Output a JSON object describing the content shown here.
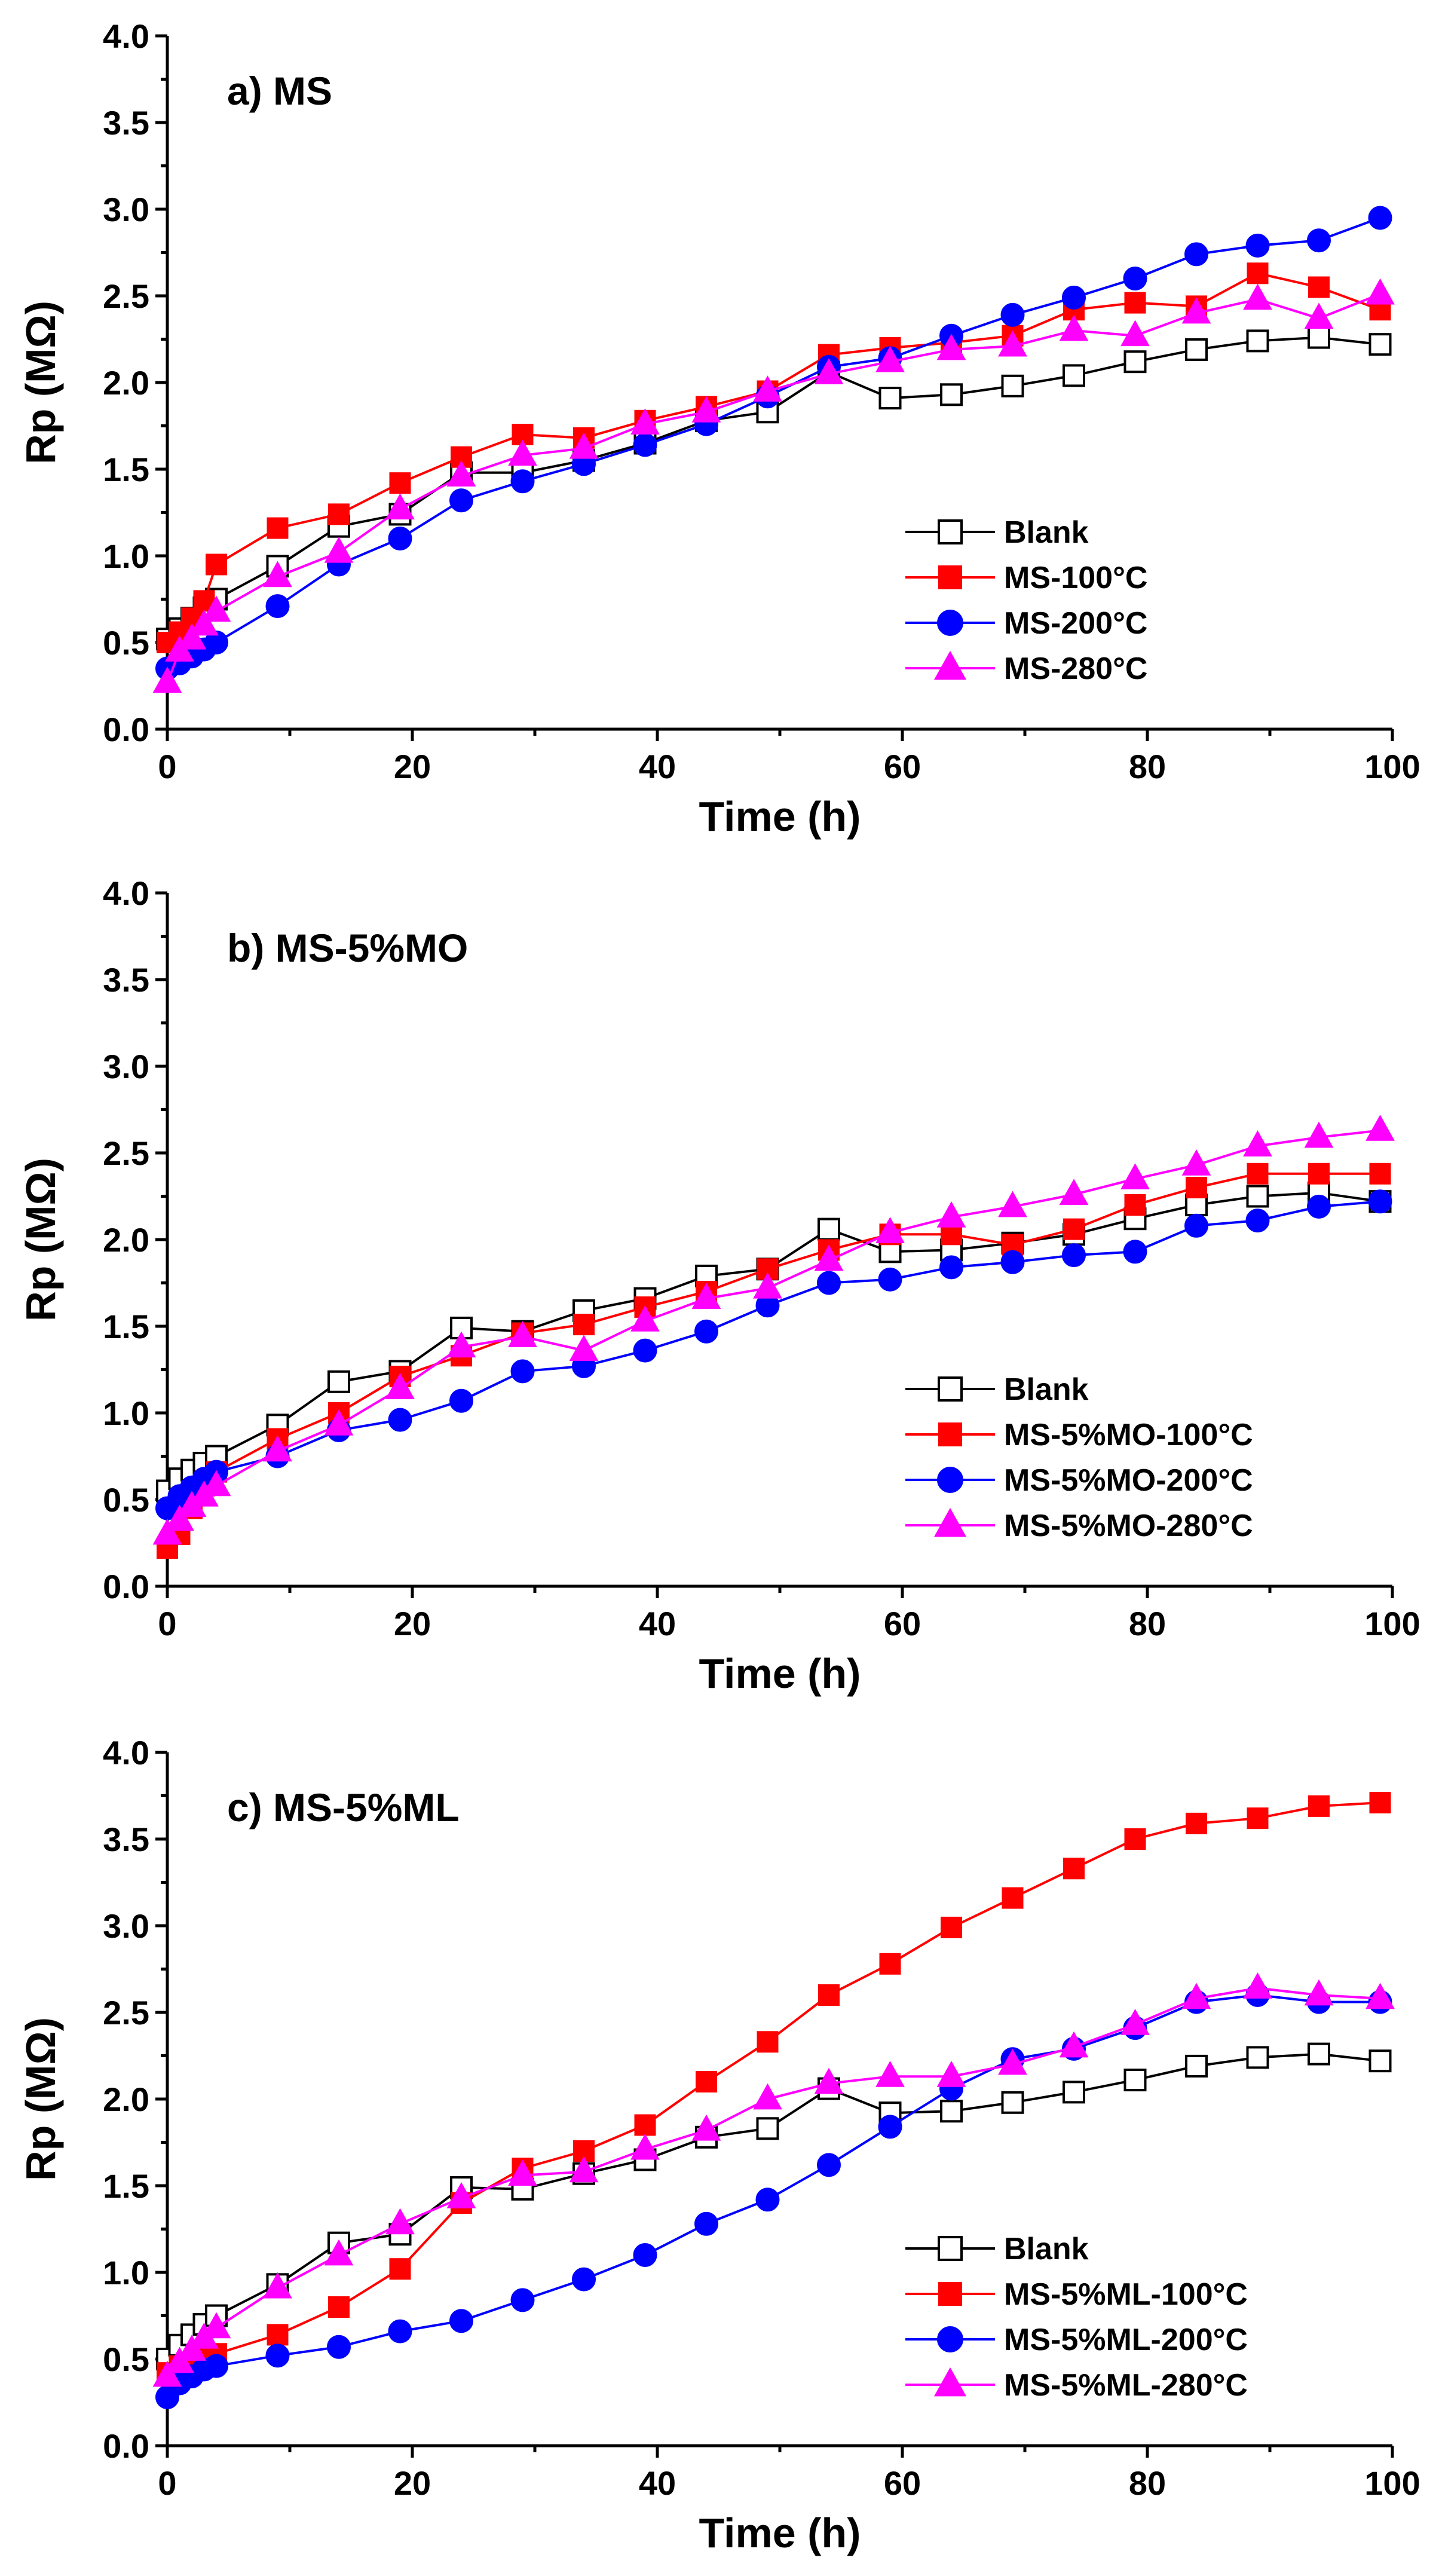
{
  "chart_data": [
    {
      "type": "line",
      "title": "a) MS",
      "xlabel": "Time (h)",
      "ylabel": "Rp (MΩ)",
      "xlim": [
        0,
        100
      ],
      "ylim": [
        0,
        4.0
      ],
      "xticks": [
        "0",
        "20",
        "40",
        "60",
        "80",
        "100"
      ],
      "yticks": [
        "0.0",
        "0.5",
        "1.0",
        "1.5",
        "2.0",
        "2.5",
        "3.0",
        "3.5",
        "4.0"
      ],
      "grid": false,
      "legend_position": "lower-right",
      "series": [
        {
          "name": "Blank",
          "color": "#000000",
          "marker": "open-square",
          "x": [
            0,
            1,
            2,
            3,
            4,
            9,
            14,
            19,
            24,
            29,
            34,
            39,
            44,
            49,
            54,
            59,
            64,
            69,
            74,
            79,
            84,
            89,
            94,
            99
          ],
          "y": [
            0.52,
            0.58,
            0.64,
            0.7,
            0.75,
            0.94,
            1.17,
            1.24,
            1.48,
            1.48,
            1.55,
            1.65,
            1.78,
            1.83,
            2.06,
            1.91,
            1.93,
            1.98,
            2.04,
            2.12,
            2.19,
            2.24,
            2.26,
            2.22
          ]
        },
        {
          "name": "MS-100°C",
          "color": "#ff0000",
          "marker": "square",
          "x": [
            0,
            1,
            2,
            3,
            4,
            9,
            14,
            19,
            24,
            29,
            34,
            39,
            44,
            49,
            54,
            59,
            64,
            69,
            74,
            79,
            84,
            89,
            94,
            99
          ],
          "y": [
            0.5,
            0.56,
            0.64,
            0.74,
            0.95,
            1.16,
            1.24,
            1.42,
            1.57,
            1.7,
            1.68,
            1.78,
            1.86,
            1.95,
            2.16,
            2.2,
            2.23,
            2.27,
            2.42,
            2.46,
            2.44,
            2.63,
            2.55,
            2.42
          ]
        },
        {
          "name": "MS-200°C",
          "color": "#0000ff",
          "marker": "circle",
          "x": [
            0,
            1,
            2,
            3,
            4,
            9,
            14,
            19,
            24,
            29,
            34,
            39,
            44,
            49,
            54,
            59,
            64,
            69,
            74,
            79,
            84,
            89,
            94,
            99
          ],
          "y": [
            0.35,
            0.38,
            0.42,
            0.46,
            0.5,
            0.71,
            0.95,
            1.1,
            1.32,
            1.43,
            1.53,
            1.64,
            1.76,
            1.92,
            2.09,
            2.14,
            2.27,
            2.39,
            2.49,
            2.6,
            2.74,
            2.79,
            2.82,
            2.95
          ]
        },
        {
          "name": "MS-280°C",
          "color": "#ff00ff",
          "marker": "triangle",
          "x": [
            0,
            1,
            2,
            3,
            4,
            9,
            14,
            19,
            24,
            29,
            34,
            39,
            44,
            49,
            54,
            59,
            64,
            69,
            74,
            79,
            84,
            89,
            94,
            99
          ],
          "y": [
            0.27,
            0.45,
            0.52,
            0.6,
            0.68,
            0.88,
            1.02,
            1.27,
            1.46,
            1.58,
            1.62,
            1.76,
            1.83,
            1.95,
            2.05,
            2.12,
            2.19,
            2.21,
            2.3,
            2.27,
            2.4,
            2.48,
            2.37,
            2.51
          ]
        }
      ]
    },
    {
      "type": "line",
      "title": "b) MS-5%MO",
      "xlabel": "Time (h)",
      "ylabel": "Rp (MΩ)",
      "xlim": [
        0,
        100
      ],
      "ylim": [
        0,
        4.0
      ],
      "xticks": [
        "0",
        "20",
        "40",
        "60",
        "80",
        "100"
      ],
      "yticks": [
        "0.0",
        "0.5",
        "1.0",
        "1.5",
        "2.0",
        "2.5",
        "3.0",
        "3.5",
        "4.0"
      ],
      "grid": false,
      "legend_position": "lower-right",
      "series": [
        {
          "name": "Blank",
          "color": "#000000",
          "marker": "open-square",
          "x": [
            0,
            1,
            2,
            3,
            4,
            9,
            14,
            19,
            24,
            29,
            34,
            39,
            44,
            49,
            54,
            59,
            64,
            69,
            74,
            79,
            84,
            89,
            94,
            99
          ],
          "y": [
            0.55,
            0.62,
            0.67,
            0.71,
            0.75,
            0.93,
            1.18,
            1.24,
            1.49,
            1.47,
            1.59,
            1.66,
            1.79,
            1.83,
            2.06,
            1.93,
            1.94,
            1.98,
            2.03,
            2.12,
            2.2,
            2.25,
            2.27,
            2.22
          ]
        },
        {
          "name": "MS-5%MO-100°C",
          "color": "#ff0000",
          "marker": "square",
          "x": [
            0,
            1,
            2,
            3,
            4,
            9,
            14,
            19,
            24,
            29,
            34,
            39,
            44,
            49,
            54,
            59,
            64,
            69,
            74,
            79,
            84,
            89,
            94,
            99
          ],
          "y": [
            0.22,
            0.3,
            0.45,
            0.58,
            0.66,
            0.85,
            1.0,
            1.21,
            1.33,
            1.46,
            1.51,
            1.61,
            1.7,
            1.83,
            1.94,
            2.03,
            2.03,
            1.97,
            2.06,
            2.2,
            2.3,
            2.38,
            2.38,
            2.38
          ]
        },
        {
          "name": "MS-5%MO-200°C",
          "color": "#0000ff",
          "marker": "circle",
          "x": [
            0,
            1,
            2,
            3,
            4,
            9,
            14,
            19,
            24,
            29,
            34,
            39,
            44,
            49,
            54,
            59,
            64,
            69,
            74,
            79,
            84,
            89,
            94,
            99
          ],
          "y": [
            0.45,
            0.52,
            0.57,
            0.62,
            0.66,
            0.75,
            0.9,
            0.96,
            1.07,
            1.24,
            1.27,
            1.36,
            1.47,
            1.62,
            1.75,
            1.77,
            1.84,
            1.87,
            1.91,
            1.93,
            2.08,
            2.11,
            2.19,
            2.22
          ]
        },
        {
          "name": "MS-5%MO-280°C",
          "color": "#ff00ff",
          "marker": "triangle",
          "x": [
            0,
            1,
            2,
            3,
            4,
            9,
            14,
            19,
            24,
            29,
            34,
            39,
            44,
            49,
            54,
            59,
            64,
            69,
            74,
            79,
            84,
            89,
            94,
            99
          ],
          "y": [
            0.3,
            0.38,
            0.46,
            0.52,
            0.58,
            0.78,
            0.93,
            1.14,
            1.38,
            1.44,
            1.36,
            1.53,
            1.66,
            1.72,
            1.88,
            2.04,
            2.13,
            2.19,
            2.26,
            2.35,
            2.43,
            2.54,
            2.59,
            2.63
          ]
        }
      ]
    },
    {
      "type": "line",
      "title": "c) MS-5%ML",
      "xlabel": "Time (h)",
      "ylabel": "Rp (MΩ)",
      "xlim": [
        0,
        100
      ],
      "ylim": [
        0,
        4.0
      ],
      "xticks": [
        "0",
        "20",
        "40",
        "60",
        "80",
        "100"
      ],
      "yticks": [
        "0.0",
        "0.5",
        "1.0",
        "1.5",
        "2.0",
        "2.5",
        "3.0",
        "3.5",
        "4.0"
      ],
      "grid": false,
      "legend_position": "lower-right",
      "series": [
        {
          "name": "Blank",
          "color": "#000000",
          "marker": "open-square",
          "x": [
            0,
            1,
            2,
            3,
            4,
            9,
            14,
            19,
            24,
            29,
            34,
            39,
            44,
            49,
            54,
            59,
            64,
            69,
            74,
            79,
            84,
            89,
            94,
            99
          ],
          "y": [
            0.5,
            0.58,
            0.64,
            0.7,
            0.75,
            0.93,
            1.17,
            1.22,
            1.49,
            1.48,
            1.57,
            1.65,
            1.78,
            1.83,
            2.06,
            1.92,
            1.93,
            1.98,
            2.04,
            2.11,
            2.19,
            2.24,
            2.26,
            2.22
          ]
        },
        {
          "name": "MS-5%ML-100°C",
          "color": "#ff0000",
          "marker": "square",
          "x": [
            0,
            1,
            2,
            3,
            4,
            9,
            14,
            19,
            24,
            29,
            34,
            39,
            44,
            49,
            54,
            59,
            64,
            69,
            74,
            79,
            84,
            89,
            94,
            99
          ],
          "y": [
            0.42,
            0.46,
            0.48,
            0.5,
            0.53,
            0.64,
            0.8,
            1.02,
            1.4,
            1.6,
            1.7,
            1.85,
            2.1,
            2.33,
            2.6,
            2.78,
            2.99,
            3.16,
            3.33,
            3.5,
            3.59,
            3.62,
            3.69,
            3.71
          ]
        },
        {
          "name": "MS-5%ML-200°C",
          "color": "#0000ff",
          "marker": "circle",
          "x": [
            0,
            1,
            2,
            3,
            4,
            9,
            14,
            19,
            24,
            29,
            34,
            39,
            44,
            49,
            54,
            59,
            64,
            69,
            74,
            79,
            84,
            89,
            94,
            99
          ],
          "y": [
            0.28,
            0.36,
            0.4,
            0.44,
            0.46,
            0.52,
            0.57,
            0.66,
            0.72,
            0.84,
            0.96,
            1.1,
            1.28,
            1.42,
            1.62,
            1.84,
            2.06,
            2.23,
            2.29,
            2.41,
            2.56,
            2.6,
            2.56,
            2.56
          ]
        },
        {
          "name": "MS-5%ML-280°C",
          "color": "#ff00ff",
          "marker": "triangle",
          "x": [
            0,
            1,
            2,
            3,
            4,
            9,
            14,
            19,
            24,
            29,
            34,
            39,
            44,
            49,
            54,
            59,
            64,
            69,
            74,
            79,
            84,
            89,
            94,
            99
          ],
          "y": [
            0.4,
            0.48,
            0.55,
            0.62,
            0.68,
            0.91,
            1.1,
            1.28,
            1.43,
            1.56,
            1.58,
            1.71,
            1.82,
            2.0,
            2.09,
            2.13,
            2.13,
            2.2,
            2.3,
            2.43,
            2.58,
            2.64,
            2.6,
            2.58
          ]
        }
      ]
    }
  ]
}
